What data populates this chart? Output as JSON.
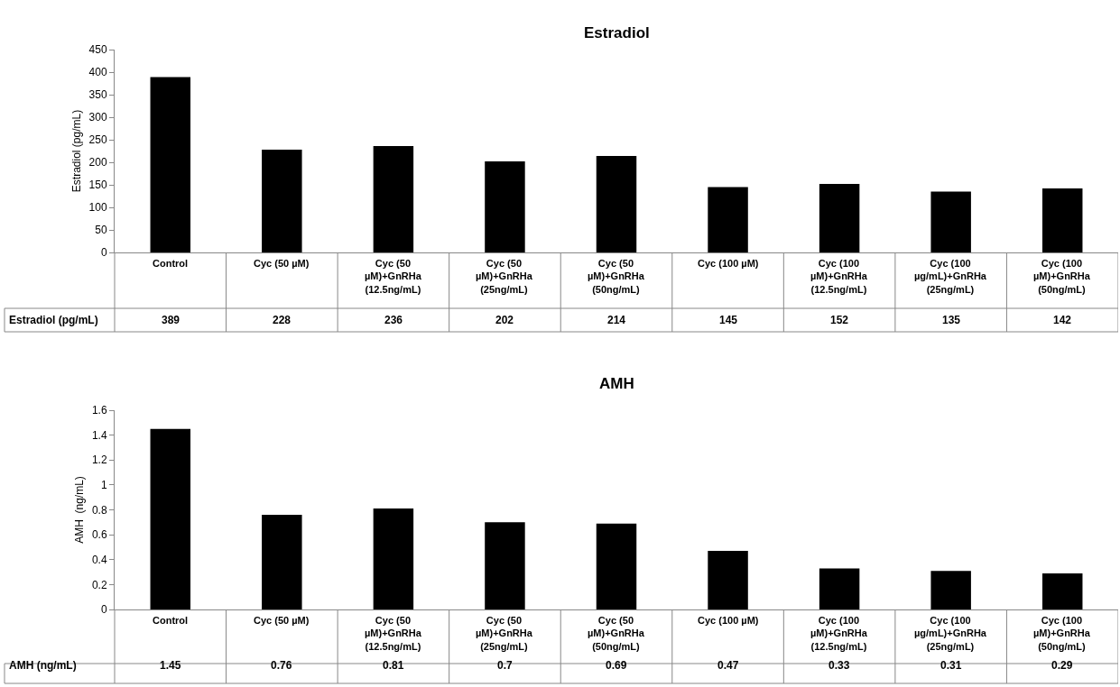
{
  "chart_data": [
    {
      "type": "bar",
      "title": "Estradiol",
      "ylabel": "Estradiol (pg/mL)",
      "categories": [
        "Control",
        "Cyc (50 µM)",
        "Cyc (50 µM)+GnRHa (12.5ng/mL)",
        "Cyc (50 µM)+GnRHa (25ng/mL)",
        "Cyc (50 µM)+GnRHa (50ng/mL)",
        "Cyc (100 µM)",
        "Cyc (100 µM)+GnRHa (12.5ng/mL)",
        "Cyc (100 µg/mL)+GnRHa (25ng/mL)",
        "Cyc (100 µM)+GnRHa (50ng/mL)"
      ],
      "series": [
        {
          "name": "Estradiol (pg/mL)",
          "color": "#000000",
          "values": [
            389,
            228,
            236,
            202,
            214,
            145,
            152,
            135,
            142
          ]
        }
      ],
      "ylim": [
        0,
        450
      ],
      "yticks": [
        0,
        50,
        100,
        150,
        200,
        250,
        300,
        350,
        400,
        450
      ],
      "data_labels": true
    },
    {
      "type": "bar",
      "title": "AMH",
      "ylabel": "AMH  (ng/mL)",
      "categories": [
        "Control",
        "Cyc (50 µM)",
        "Cyc (50 µM)+GnRHa (12.5ng/mL)",
        "Cyc (50 µM)+GnRHa (25ng/mL)",
        "Cyc (50 µM)+GnRHa (50ng/mL)",
        "Cyc (100 µM)",
        "Cyc (100 µM)+GnRHa (12.5ng/mL)",
        "Cyc (100 µg/mL)+GnRHa (25ng/mL)",
        "Cyc (100 µM)+GnRHa (50ng/mL)"
      ],
      "series": [
        {
          "name": "AMH (ng/mL)",
          "color": "#000000",
          "values": [
            1.45,
            0.76,
            0.81,
            0.7,
            0.69,
            0.47,
            0.33,
            0.31,
            0.29
          ]
        }
      ],
      "ylim": [
        0,
        1.6
      ],
      "yticks": [
        0,
        0.2,
        0.4,
        0.6,
        0.8,
        1,
        1.2,
        1.4,
        1.6
      ],
      "data_labels": true
    }
  ]
}
